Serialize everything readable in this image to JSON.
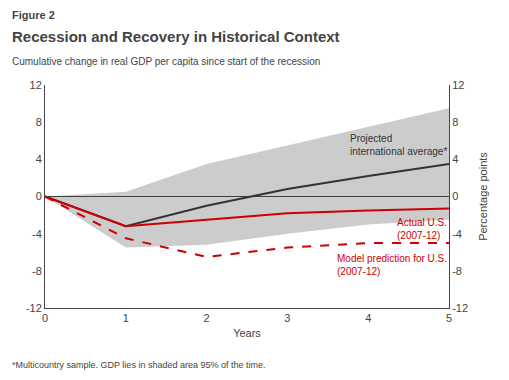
{
  "chart_data": {
    "type": "line",
    "title_label": "Figure 2",
    "title": "Recession and Recovery in Historical Context",
    "subtitle": "Cumulative change in real GDP per capita since start of the recession",
    "footnote": "*Multicountry sample. GDP lies in shaded area 95% of the time.",
    "xlabel": "Years",
    "ylabel": "Percentage points",
    "x": [
      0,
      1,
      2,
      3,
      4,
      5
    ],
    "xlim": [
      0,
      5
    ],
    "xticks": [
      0,
      1,
      2,
      3,
      4,
      5
    ],
    "ylim": [
      -12,
      12
    ],
    "yticks": [
      -12,
      -8,
      -4,
      0,
      4,
      8,
      12
    ],
    "y2lim": [
      -12,
      12
    ],
    "y2ticks": [
      -12,
      -8,
      -4,
      0,
      4,
      8,
      12
    ],
    "grid": false,
    "series": [
      {
        "name": "Projected\ninternational average*",
        "color": "#333333",
        "values": [
          0,
          -3.2,
          -1.0,
          0.8,
          2.2,
          3.5
        ],
        "lower": [
          0,
          -5.5,
          -5.2,
          -4.0,
          -3.0,
          -2.5
        ],
        "upper": [
          0,
          0.5,
          3.5,
          5.5,
          7.5,
          9.5
        ]
      },
      {
        "name": "Actual U.S.\n(2007-12)",
        "color": "#cc0000",
        "values": [
          0,
          -3.2,
          -2.5,
          -1.8,
          -1.5,
          -1.3
        ]
      },
      {
        "name": "Model prediction for U.S.\n(2007-12)",
        "color": "#cc0000",
        "values": [
          0,
          -4.5,
          -6.5,
          -5.5,
          -5.0,
          -5.0
        ],
        "line_style": "dashed"
      }
    ]
  }
}
